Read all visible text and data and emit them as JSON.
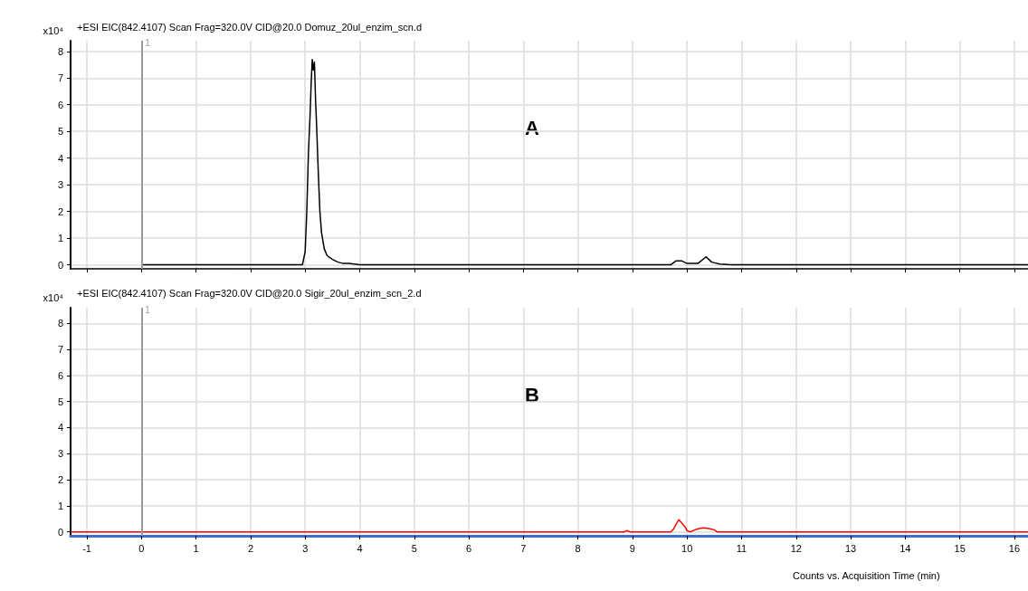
{
  "chart_data": [
    {
      "type": "line",
      "title": "+ESI EIC(842.4107) Scan Frag=320.0V CID@20.0 Domuz_20ul_enzim_scn.d",
      "ylabel": "x10⁴",
      "annotations": [
        "A",
        {
          "text": "1",
          "x": 0,
          "y": 8.3
        }
      ],
      "xlim": [
        -1.3,
        16.25
      ],
      "ylim": [
        -0.15,
        8.4
      ],
      "yticks": [
        0,
        1,
        2,
        3,
        4,
        5,
        6,
        7,
        8
      ],
      "xticks": [
        -1,
        0,
        1,
        2,
        3,
        4,
        5,
        6,
        7,
        8,
        9,
        10,
        11,
        12,
        13,
        14,
        15,
        16
      ],
      "tick_labels": "y",
      "grid": true,
      "marker": "none",
      "line_style": "solid",
      "ref_lines": [
        {
          "axis": "x",
          "value": 0,
          "color": "#999999"
        }
      ],
      "series": [
        {
          "color": "#000000",
          "x": [
            0,
            2.95,
            3.0,
            3.03,
            3.06,
            3.09,
            3.11,
            3.13,
            3.15,
            3.17,
            3.19,
            3.21,
            3.24,
            3.27,
            3.3,
            3.35,
            3.4,
            3.5,
            3.6,
            3.7,
            3.8,
            4.0,
            9.7,
            9.8,
            9.9,
            10.0,
            10.2,
            10.35,
            10.45,
            10.6,
            10.8,
            16.25
          ],
          "values": [
            0,
            0,
            0.5,
            2,
            4.2,
            5.6,
            6.8,
            7.7,
            7.3,
            7.6,
            6.2,
            5.2,
            3.5,
            2,
            1.2,
            0.6,
            0.35,
            0.2,
            0.1,
            0.05,
            0.05,
            0,
            0,
            0.15,
            0.15,
            0.05,
            0.05,
            0.3,
            0.1,
            0.03,
            0,
            0
          ]
        }
      ]
    },
    {
      "type": "line",
      "title": "+ESI EIC(842.4107) Scan Frag=320.0V CID@20.0 Sigir_20ul_enzim_scn_2.d",
      "ylabel": "x10⁴",
      "xlabel": "Counts vs. Acquisition Time (min)",
      "annotations": [
        "B",
        {
          "text": "1",
          "x": 0,
          "y": 8.5
        }
      ],
      "xlim": [
        -1.3,
        16.25
      ],
      "ylim": [
        -0.15,
        8.6
      ],
      "yticks": [
        0,
        1,
        2,
        3,
        4,
        5,
        6,
        7,
        8
      ],
      "xticks": [
        -1,
        0,
        1,
        2,
        3,
        4,
        5,
        6,
        7,
        8,
        9,
        10,
        11,
        12,
        13,
        14,
        15,
        16
      ],
      "grid": true,
      "marker": "none",
      "line_style": "solid",
      "ref_lines": [
        {
          "axis": "x",
          "value": 0,
          "color": "#999999"
        }
      ],
      "series": [
        {
          "color": "#ff0000",
          "x": [
            -1.3,
            8.85,
            8.9,
            8.95,
            9.7,
            9.75,
            9.8,
            9.85,
            9.88,
            9.92,
            9.96,
            10.0,
            10.05,
            10.15,
            10.2,
            10.3,
            10.4,
            10.5,
            10.55,
            16.25
          ],
          "values": [
            0,
            0,
            0.05,
            0,
            0,
            0.1,
            0.3,
            0.47,
            0.4,
            0.3,
            0.2,
            0.05,
            0,
            0.08,
            0.12,
            0.15,
            0.13,
            0.08,
            0,
            0
          ]
        }
      ]
    }
  ]
}
